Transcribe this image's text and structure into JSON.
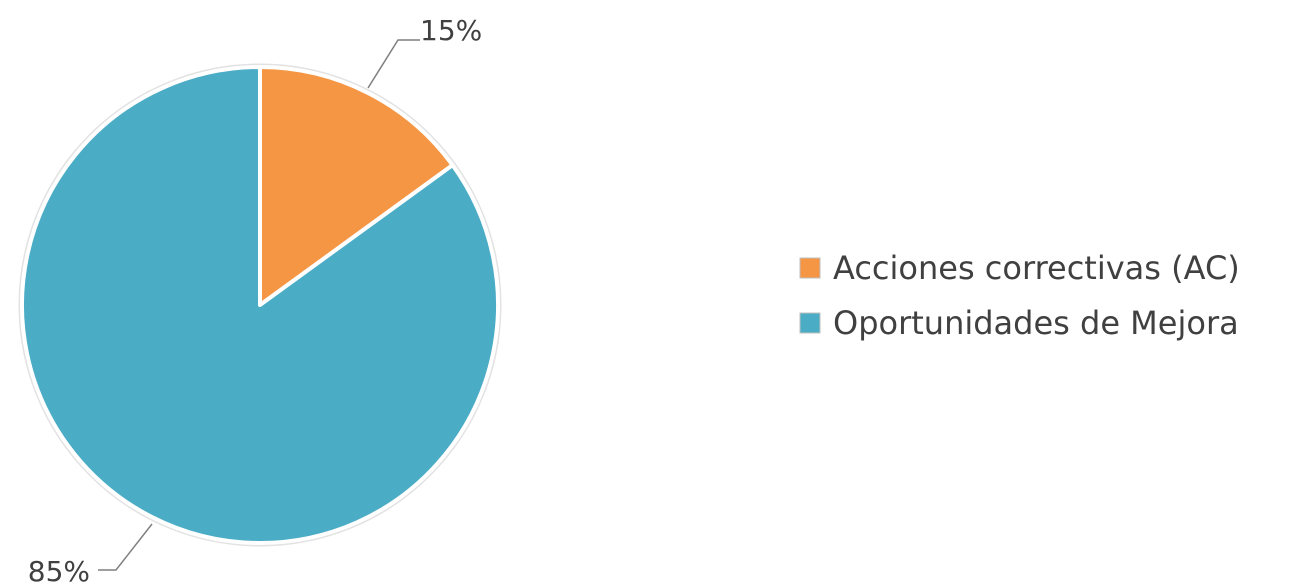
{
  "chart_data": {
    "type": "pie",
    "categories": [
      "Acciones correctivas (AC)",
      "Oportunidades de Mejora"
    ],
    "values": [
      15,
      85
    ],
    "data_labels": [
      "15%",
      "85%"
    ],
    "colors": [
      "#F59645",
      "#4BACC6"
    ],
    "legend_position": "right"
  }
}
